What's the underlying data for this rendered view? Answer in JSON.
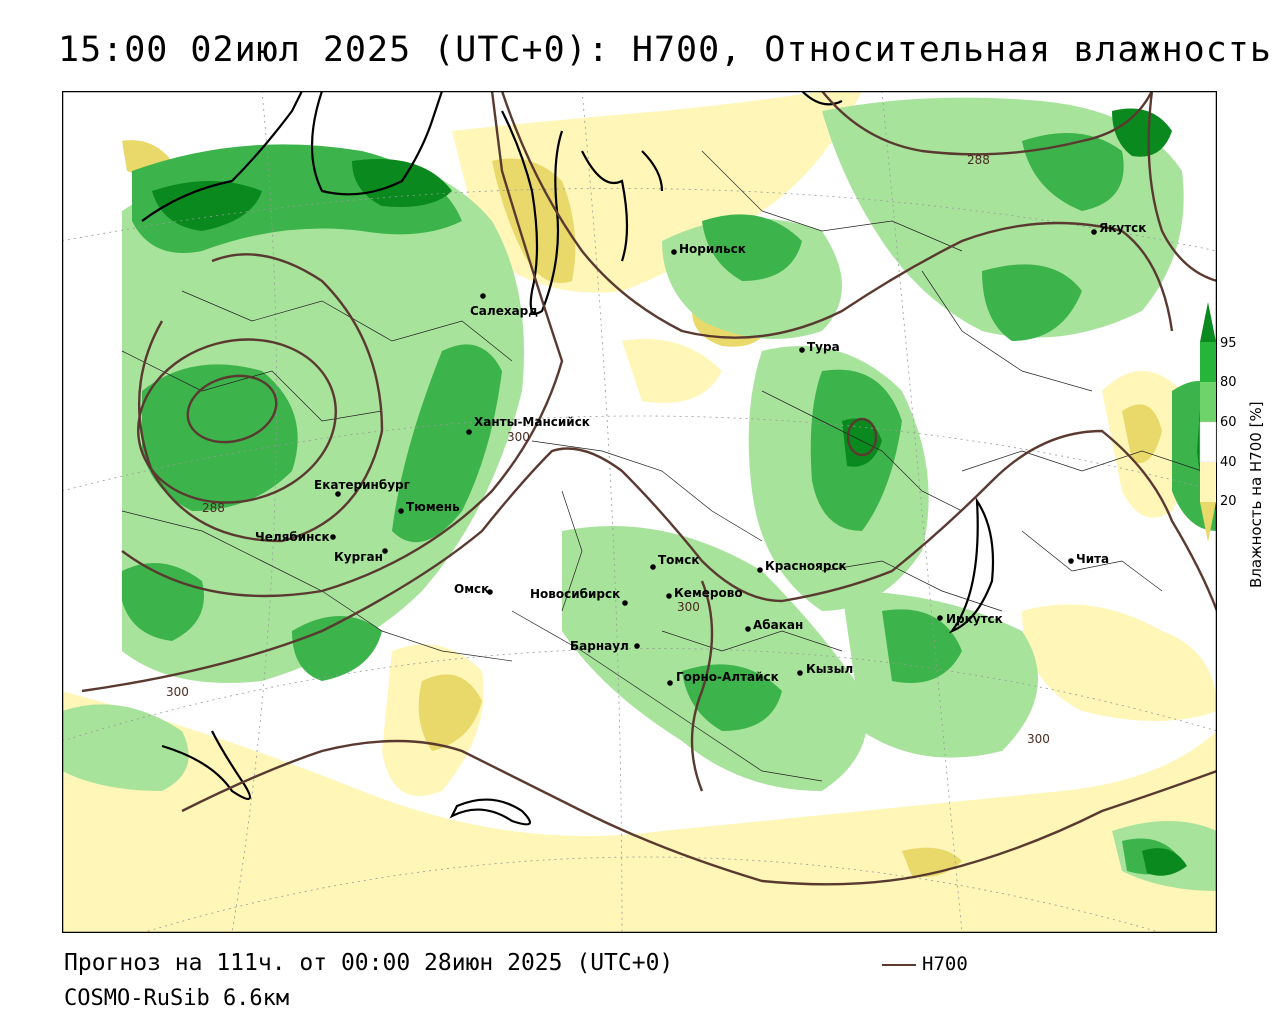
{
  "title": "15:00 02июл 2025 (UTC+0): H700, Относительная влажность",
  "footer": {
    "forecast": "Прогноз на 111ч. от 00:00 28июн 2025 (UTC+0)",
    "model": "COSMO-RuSib 6.6км",
    "legend_label": "H700"
  },
  "colorbar": {
    "title": "Влажность на H700 [%]",
    "ticks": [
      "95",
      "80",
      "60",
      "40",
      "20"
    ],
    "colors": [
      "#0a8a1e",
      "#27b43a",
      "#6fd36c",
      "#c8f0bc",
      "#ffffff",
      "#fff6b8",
      "#e8d96a"
    ]
  },
  "colors": {
    "contour": "#5a3a30",
    "coast": "#000000",
    "dark_green": "#0a8a1e",
    "green": "#3cb44b",
    "light_green": "#a8e39c",
    "pale_yellow": "#fff6b8",
    "yellow": "#e8d96a"
  },
  "cities": [
    {
      "name": "Норильск"
    },
    {
      "name": "Якутск"
    },
    {
      "name": "Салехард"
    },
    {
      "name": "Тура"
    },
    {
      "name": "Ханты-Мансийск"
    },
    {
      "name": "Екатеринбург"
    },
    {
      "name": "Тюмень"
    },
    {
      "name": "Челябинск"
    },
    {
      "name": "Курган"
    },
    {
      "name": "Омск"
    },
    {
      "name": "Новосибирск"
    },
    {
      "name": "Томск"
    },
    {
      "name": "Кемерово"
    },
    {
      "name": "Красноярск"
    },
    {
      "name": "Барнаул"
    },
    {
      "name": "Абакан"
    },
    {
      "name": "Горно-Алтайск"
    },
    {
      "name": "Кызыл"
    },
    {
      "name": "Иркутск"
    },
    {
      "name": "Чита"
    }
  ],
  "contour_labels": [
    "288",
    "300",
    "288",
    "300",
    "300",
    "300"
  ]
}
